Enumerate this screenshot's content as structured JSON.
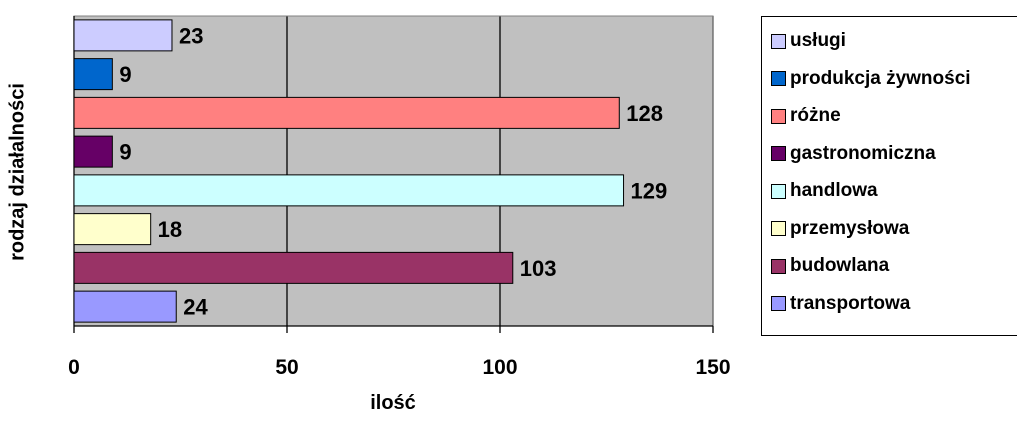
{
  "chart_data": {
    "type": "bar",
    "orientation": "horizontal",
    "categories": [
      "usługi",
      "produkcja żywności",
      "różne",
      "gastronomiczna",
      "handlowa",
      "przemysłowa",
      "budowlana",
      "transportowa"
    ],
    "values": [
      23,
      9,
      128,
      9,
      129,
      18,
      103,
      24
    ],
    "colors": [
      "#CCCCFF",
      "#0066CC",
      "#FF8080",
      "#660066",
      "#CCFFFF",
      "#FFFFCC",
      "#993366",
      "#9999FF"
    ],
    "xlabel": "ilość",
    "ylabel": "rodzaj działalności",
    "xlim": [
      0,
      150
    ],
    "xticks": [
      "0",
      "50",
      "100",
      "150"
    ],
    "plot_background": "#C0C0C0",
    "grid": true,
    "legend_position": "right"
  }
}
